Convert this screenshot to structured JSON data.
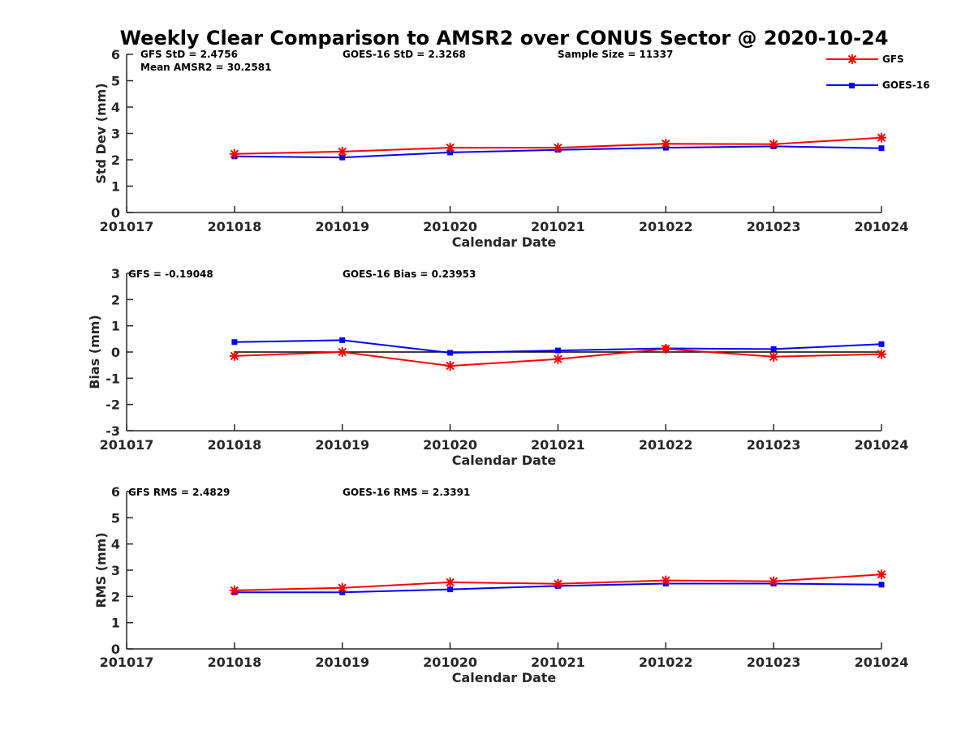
{
  "figure": {
    "title": "Weekly Clear Comparison to AMSR2 over CONUS Sector @ 2020-10-24"
  },
  "legend": {
    "placement": "top-right",
    "items": [
      {
        "label": "GFS",
        "color": "#ff0000",
        "marker": "asterisk"
      },
      {
        "label": "GOES-16",
        "color": "#0000ff",
        "marker": "square"
      }
    ]
  },
  "chart_data": [
    {
      "type": "line",
      "categories": [
        "201017",
        "201018",
        "201019",
        "201020",
        "201021",
        "201022",
        "201023",
        "201024"
      ],
      "xlabel": "Calendar Date",
      "ylabel": "Std Dev (mm)",
      "ylim": [
        0,
        6
      ],
      "yticks": [
        "0",
        "1",
        "2",
        "3",
        "4",
        "5",
        "6"
      ],
      "zero_line": false,
      "stats": {
        "left": "GFS StD = 2.4756",
        "left2": "Mean AMSR2 = 30.2581",
        "center": "GOES-16 StD = 2.3268",
        "right": "Sample Size = 11337"
      },
      "series": [
        {
          "name": "GFS",
          "color": "#ff0000",
          "values": [
            null,
            2.22,
            2.31,
            2.46,
            2.46,
            2.61,
            2.59,
            2.84
          ]
        },
        {
          "name": "GOES-16",
          "color": "#0000ff",
          "values": [
            null,
            2.13,
            2.09,
            2.28,
            2.38,
            2.46,
            2.51,
            2.44
          ]
        }
      ]
    },
    {
      "type": "line",
      "categories": [
        "201017",
        "201018",
        "201019",
        "201020",
        "201021",
        "201022",
        "201023",
        "201024"
      ],
      "xlabel": "Calendar Date",
      "ylabel": "Bias (mm)",
      "ylim": [
        -3,
        3
      ],
      "yticks": [
        "-3",
        "-2",
        "-1",
        "0",
        "1",
        "2",
        "3"
      ],
      "zero_line": true,
      "stats": {
        "left": "GFS = -0.19048",
        "center": "GOES-16 Bias  = 0.23953"
      },
      "series": [
        {
          "name": "GFS",
          "color": "#ff0000",
          "values": [
            null,
            -0.15,
            0.0,
            -0.53,
            -0.27,
            0.12,
            -0.18,
            -0.08
          ]
        },
        {
          "name": "GOES-16",
          "color": "#0000ff",
          "values": [
            null,
            0.38,
            0.45,
            -0.03,
            0.06,
            0.14,
            0.11,
            0.3
          ]
        }
      ]
    },
    {
      "type": "line",
      "categories": [
        "201017",
        "201018",
        "201019",
        "201020",
        "201021",
        "201022",
        "201023",
        "201024"
      ],
      "xlabel": "Calendar Date",
      "ylabel": "RMS (mm)",
      "ylim": [
        0,
        6
      ],
      "yticks": [
        "0",
        "1",
        "2",
        "3",
        "4",
        "5",
        "6"
      ],
      "zero_line": false,
      "stats": {
        "left": "GFS RMS = 2.4829",
        "center": "GOES-16 RMS = 2.3391"
      },
      "series": [
        {
          "name": "GFS",
          "color": "#ff0000",
          "values": [
            null,
            2.23,
            2.33,
            2.54,
            2.48,
            2.61,
            2.58,
            2.84
          ]
        },
        {
          "name": "GOES-16",
          "color": "#0000ff",
          "values": [
            null,
            2.16,
            2.16,
            2.27,
            2.4,
            2.49,
            2.49,
            2.45
          ]
        }
      ]
    }
  ]
}
